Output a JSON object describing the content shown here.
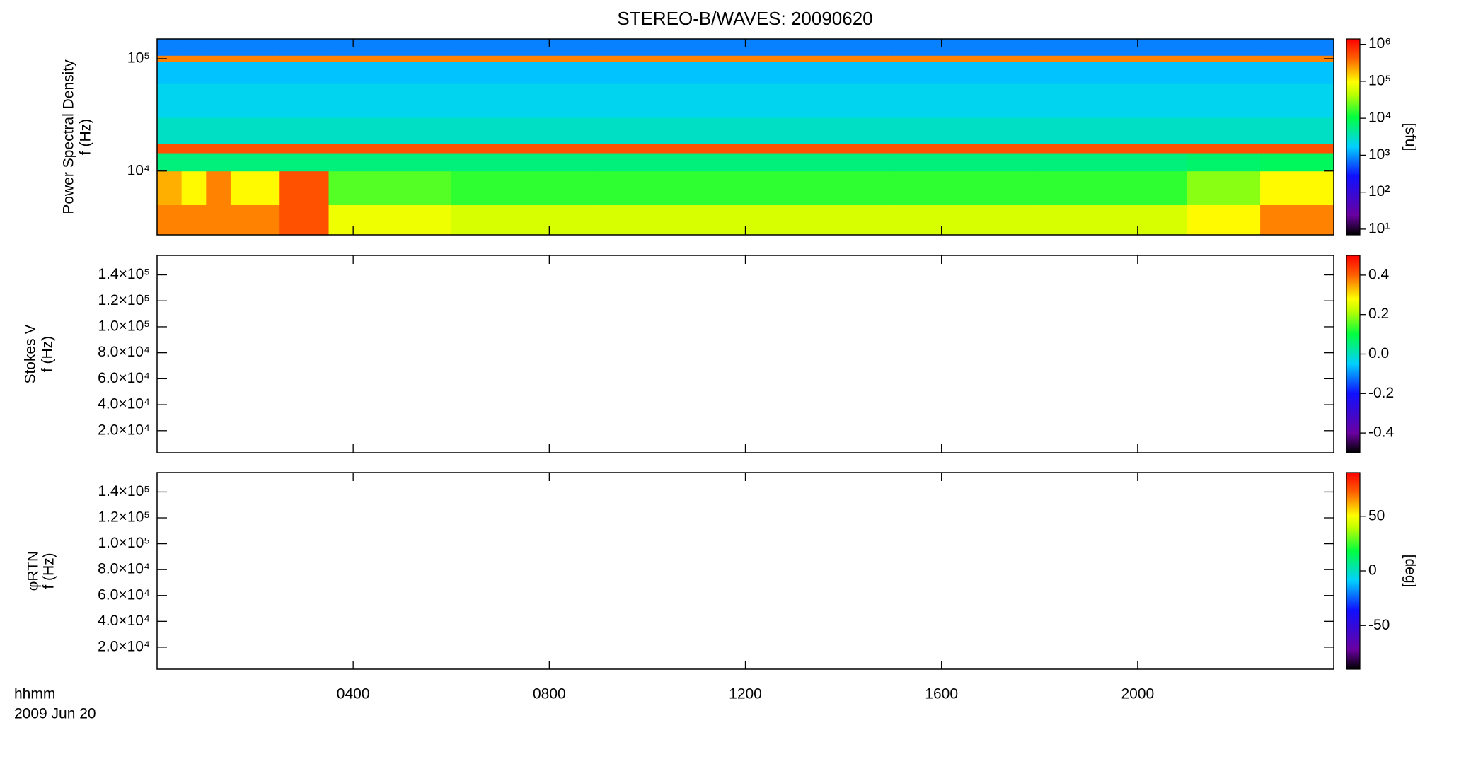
{
  "chart_data": [
    {
      "type": "heatmap",
      "title": "STEREO-B/WAVES: 20090620",
      "ylabel": [
        "Power Spectral Density",
        "f (Hz)"
      ],
      "yscale": "log",
      "ylim": [
        2700,
        150000
      ],
      "yticks": [
        {
          "value": 10000,
          "label": "10⁴"
        },
        {
          "value": 100000,
          "label": "10⁵"
        }
      ],
      "x_edges": [
        0,
        0.5,
        1,
        1.5,
        2.5,
        3.5,
        6,
        9,
        12,
        15,
        18,
        21,
        22.5,
        24
      ],
      "y_edges": [
        2700,
        5000,
        10000,
        14500,
        17500,
        30000,
        60000,
        95000,
        107000,
        150000
      ],
      "z": [
        [
          300000,
          300000,
          300000,
          300000,
          500000,
          80000,
          60000,
          60000,
          60000,
          60000,
          60000,
          100000,
          300000
        ],
        [
          200000,
          100000,
          300000,
          100000,
          500000,
          20000,
          15000,
          15000,
          15000,
          15000,
          15000,
          30000,
          100000
        ],
        [
          6000,
          6000,
          6000,
          6000,
          6000,
          6000,
          6000,
          6000,
          6000,
          6000,
          6000,
          7000,
          8000
        ],
        [
          500000,
          500000,
          500000,
          500000,
          500000,
          500000,
          500000,
          500000,
          500000,
          500000,
          500000,
          500000,
          500000
        ],
        [
          3000,
          3000,
          3000,
          3000,
          3000,
          3000,
          3000,
          3000,
          3000,
          3000,
          3000,
          3000,
          3000
        ],
        [
          2000,
          2000,
          2000,
          2000,
          2000,
          2000,
          2000,
          2000,
          2000,
          2000,
          2000,
          2000,
          2000
        ],
        [
          1500,
          1500,
          1500,
          1500,
          1500,
          1500,
          1500,
          1500,
          1500,
          1500,
          1500,
          1500,
          1500
        ],
        [
          300000,
          300000,
          300000,
          300000,
          300000,
          300000,
          300000,
          300000,
          300000,
          300000,
          300000,
          300000,
          300000
        ],
        [
          800,
          800,
          800,
          800,
          800,
          800,
          800,
          800,
          800,
          800,
          800,
          800,
          800
        ]
      ],
      "colorbar": {
        "scale": "log",
        "lim": [
          7,
          1400000
        ],
        "ticks": [
          {
            "value": 10,
            "label": "10¹"
          },
          {
            "value": 100,
            "label": "10²"
          },
          {
            "value": 1000,
            "label": "10³"
          },
          {
            "value": 10000,
            "label": "10⁴"
          },
          {
            "value": 100000,
            "label": "10⁵"
          },
          {
            "value": 1000000,
            "label": "10⁶"
          }
        ],
        "label": "[sfu]"
      }
    },
    {
      "type": "heatmap",
      "ylabel": [
        "Stokes V",
        "f (Hz)"
      ],
      "yscale": "linear",
      "ylim": [
        3000,
        155000
      ],
      "yticks": [
        {
          "value": 20000,
          "label": "2.0×10⁴"
        },
        {
          "value": 40000,
          "label": "4.0×10⁴"
        },
        {
          "value": 60000,
          "label": "6.0×10⁴"
        },
        {
          "value": 80000,
          "label": "8.0×10⁴"
        },
        {
          "value": 100000,
          "label": "1.0×10⁵"
        },
        {
          "value": 120000,
          "label": "1.2×10⁵"
        },
        {
          "value": 140000,
          "label": "1.4×10⁵"
        }
      ],
      "colorbar": {
        "scale": "linear",
        "lim": [
          -0.5,
          0.5
        ],
        "ticks": [
          -0.4,
          -0.2,
          {
            "value": 0,
            "label": "0.0"
          },
          0.2,
          0.4
        ]
      }
    },
    {
      "type": "heatmap",
      "ylabel": [
        "φRTN",
        "f (Hz)"
      ],
      "yscale": "linear",
      "ylim": [
        3000,
        155000
      ],
      "yticks": [
        {
          "value": 20000,
          "label": "2.0×10⁴"
        },
        {
          "value": 40000,
          "label": "4.0×10⁴"
        },
        {
          "value": 60000,
          "label": "6.0×10⁴"
        },
        {
          "value": 80000,
          "label": "8.0×10⁴"
        },
        {
          "value": 100000,
          "label": "1.0×10⁵"
        },
        {
          "value": 120000,
          "label": "1.2×10⁵"
        },
        {
          "value": 140000,
          "label": "1.4×10⁵"
        }
      ],
      "colorbar": {
        "scale": "linear",
        "lim": [
          -90,
          90
        ],
        "ticks": [
          -50,
          0,
          50
        ],
        "label": "[deg]"
      },
      "xlim": [
        0,
        24
      ],
      "xticks": [
        {
          "value": 4,
          "label": "0400"
        },
        {
          "value": 8,
          "label": "0800"
        },
        {
          "value": 12,
          "label": "1200"
        },
        {
          "value": 16,
          "label": "1600"
        },
        {
          "value": 20,
          "label": "2000"
        }
      ],
      "xlabel": "hhmm",
      "date": "2009 Jun 20"
    }
  ]
}
